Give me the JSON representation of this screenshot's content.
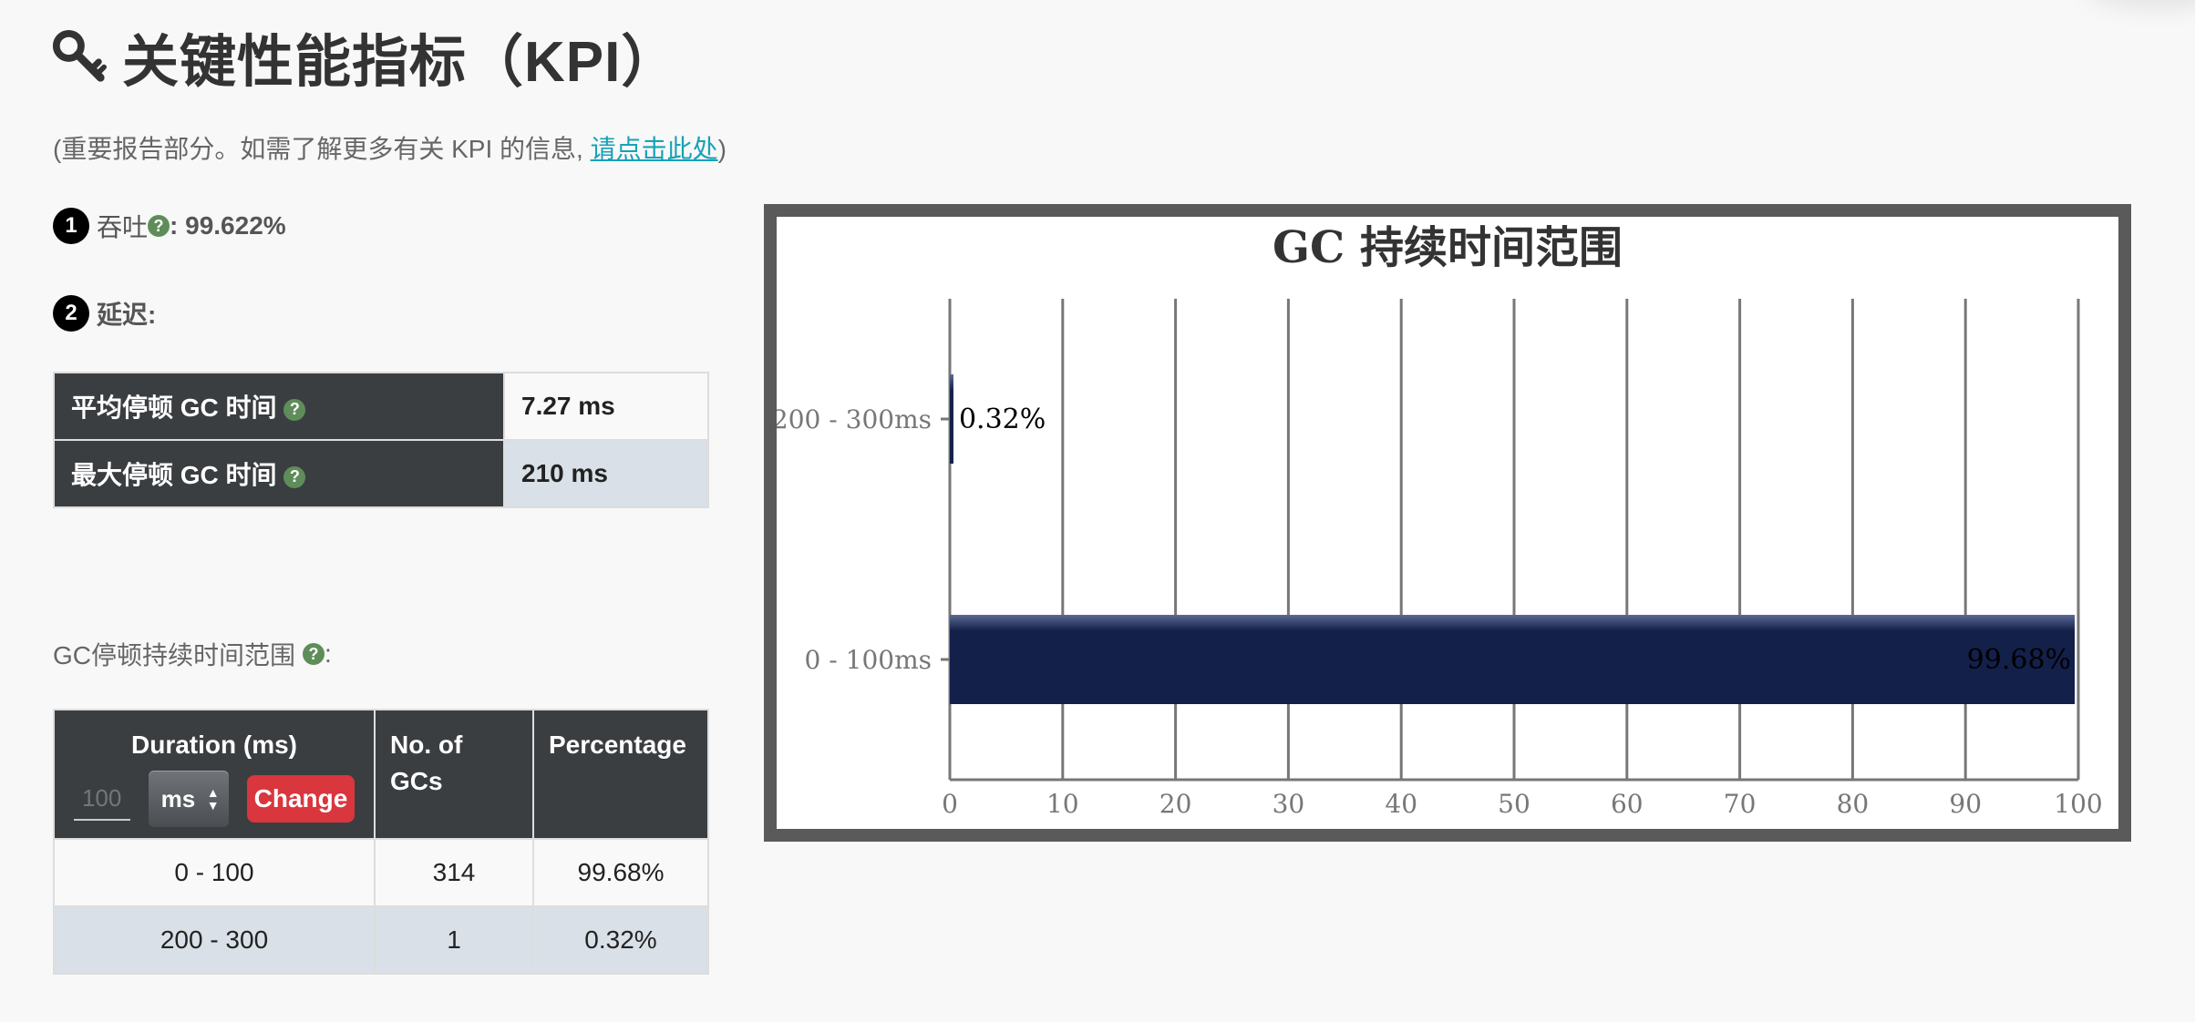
{
  "header": {
    "title": "关键性能指标（KPI）",
    "icon": "key-icon"
  },
  "subtitle": {
    "prefix": "(重要报告部分。如需了解更多有关 KPI 的信息, ",
    "link": "请点击此处",
    "suffix": ")"
  },
  "kpi": {
    "throughput": {
      "badge": "1",
      "label": "吞吐",
      "value": " : 99.622%"
    },
    "latency": {
      "badge": "2",
      "label": "延迟:"
    }
  },
  "latency_table": [
    {
      "label": "平均停顿 GC 时间",
      "value": "7.27 ms"
    },
    {
      "label": "最大停顿 GC 时间",
      "value": "210 ms"
    }
  ],
  "duration_section": {
    "label": "GC停顿持续时间范围",
    "colon": ":",
    "help": "?"
  },
  "duration_table": {
    "headers": {
      "duration": "Duration (ms)",
      "gcs": "No. of GCs",
      "percentage": "Percentage"
    },
    "input_placeholder": "100",
    "unit_value": "ms",
    "change_label": "Change",
    "rows": [
      {
        "range": "0 - 100",
        "count": "314",
        "percent": "99.68%"
      },
      {
        "range": "200 - 300",
        "count": "1",
        "percent": "0.32%"
      }
    ]
  },
  "colors": {
    "bar": "#13204a",
    "header_bg": "#3b3e41",
    "help": "#5f8d5a",
    "change": "#d9363e",
    "link": "#17a2b8"
  },
  "chart_data": {
    "type": "bar",
    "orientation": "horizontal",
    "title": "GC 持续时间范围",
    "categories": [
      "200 - 300ms",
      "0 - 100ms"
    ],
    "values": [
      0.32,
      99.68
    ],
    "data_labels": [
      "0.32%",
      "99.68%"
    ],
    "xlim": [
      0,
      100
    ],
    "xticks": [
      "0",
      "10",
      "20",
      "30",
      "40",
      "50",
      "60",
      "70",
      "80",
      "90",
      "100"
    ],
    "grid": "vertical",
    "legend": "none"
  }
}
